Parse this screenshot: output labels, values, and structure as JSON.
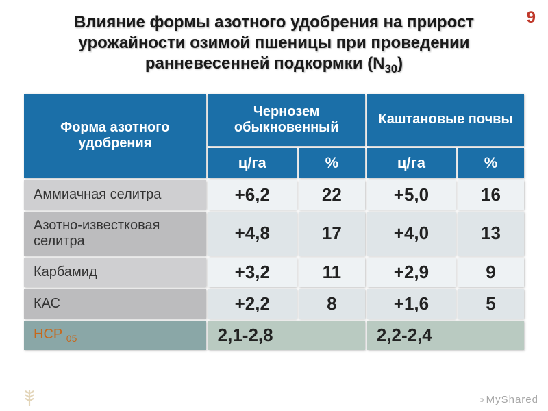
{
  "page_number_color": "#c0392b",
  "page_number": "9",
  "title_color": "#1a1a1a",
  "title_html": "Влияние формы азотного удобрения на прирост урожайности озимой пшеницы при проведении ранневесенней подкормки (N<sub>30</sub>)",
  "table": {
    "header_bg": "#1b6fa8",
    "header_text": "#ffffff",
    "col1_header": "Форма азотного удобрения",
    "col2_header": "Чернозем обыкновенный",
    "col3_header": "Каштановые почвы",
    "unit1": "ц/га",
    "unit2": "%",
    "col_widths": [
      "37%",
      "18%",
      "13.5%",
      "18%",
      "13.5%"
    ],
    "body_rows": [
      {
        "label": "Аммиачная селитра",
        "label_bg": "#cfcfd1",
        "label_color": "#333333",
        "c1": "+6,2",
        "c1_bg": "#eef2f4",
        "c1_color": "#222222",
        "c2": "22",
        "c2_bg": "#eef2f4",
        "c2_color": "#222222",
        "c3": "+5,0",
        "c3_bg": "#eef2f4",
        "c3_color": "#222222",
        "c4": "16",
        "c4_bg": "#eef2f4",
        "c4_color": "#222222"
      },
      {
        "label": "Азотно-известковая селитра",
        "label_bg": "#bcbcbe",
        "label_color": "#333333",
        "c1": "+4,8",
        "c1_bg": "#dfe5e8",
        "c1_color": "#222222",
        "c2": "17",
        "c2_bg": "#dfe5e8",
        "c2_color": "#222222",
        "c3": "+4,0",
        "c3_bg": "#dfe5e8",
        "c3_color": "#222222",
        "c4": "13",
        "c4_bg": "#dfe5e8",
        "c4_color": "#222222"
      },
      {
        "label": "Карбамид",
        "label_bg": "#cfcfd1",
        "label_color": "#333333",
        "c1": "+3,2",
        "c1_bg": "#eef2f4",
        "c1_color": "#222222",
        "c2": "11",
        "c2_bg": "#eef2f4",
        "c2_color": "#222222",
        "c3": "+2,9",
        "c3_bg": "#eef2f4",
        "c3_color": "#222222",
        "c4": "9",
        "c4_bg": "#eef2f4",
        "c4_color": "#222222"
      },
      {
        "label": "КАС",
        "label_bg": "#bcbcbe",
        "label_color": "#333333",
        "c1": "+2,2",
        "c1_bg": "#dfe5e8",
        "c1_color": "#222222",
        "c2": "8",
        "c2_bg": "#dfe5e8",
        "c2_color": "#222222",
        "c3": "+1,6",
        "c3_bg": "#dfe5e8",
        "c3_color": "#222222",
        "c4": "5",
        "c4_bg": "#dfe5e8",
        "c4_color": "#222222"
      }
    ],
    "footer_row": {
      "label": "НСР",
      "label_sub": "05",
      "label_bg": "#8aa7a7",
      "label_color": "#c6691d",
      "v1": "2,1-2,8",
      "v1_bg": "#b9cac1",
      "v1_color": "#222222",
      "v2": "2,2-2,4",
      "v2_bg": "#b9cac1",
      "v2_color": "#222222"
    }
  },
  "footnote": "MyShared",
  "footnote_color": "#a7a7a7",
  "body_bg": "#ffffff"
}
